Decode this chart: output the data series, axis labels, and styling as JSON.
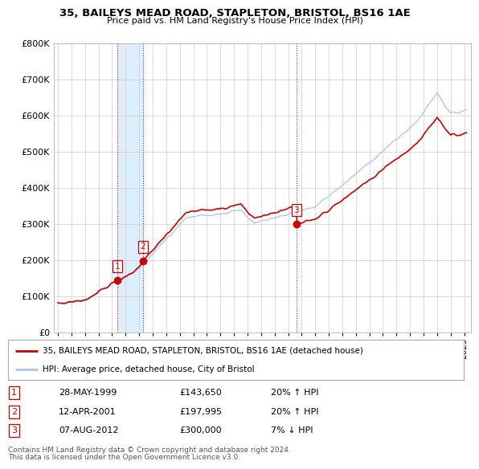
{
  "title": "35, BAILEYS MEAD ROAD, STAPLETON, BRISTOL, BS16 1AE",
  "subtitle": "Price paid vs. HM Land Registry's House Price Index (HPI)",
  "legend_line1": "35, BAILEYS MEAD ROAD, STAPLETON, BRISTOL, BS16 1AE (detached house)",
  "legend_line2": "HPI: Average price, detached house, City of Bristol",
  "footer1": "Contains HM Land Registry data © Crown copyright and database right 2024.",
  "footer2": "This data is licensed under the Open Government Licence v3.0.",
  "transactions": [
    {
      "num": 1,
      "date": "28-MAY-1999",
      "price": 143650,
      "pct": "20%",
      "dir": "↑",
      "year": 1999.38
    },
    {
      "num": 2,
      "date": "12-APR-2001",
      "price": 197995,
      "pct": "20%",
      "dir": "↑",
      "year": 2001.28
    },
    {
      "num": 3,
      "date": "07-AUG-2012",
      "price": 300000,
      "pct": "7%",
      "dir": "↓",
      "year": 2012.6
    }
  ],
  "hpi_color": "#aec9e8",
  "price_color": "#cc0000",
  "marker_color": "#cc0000",
  "vline_color": "#cc0000",
  "shade_color": "#ddeeff",
  "grid_color": "#cccccc",
  "bg_color": "#ffffff",
  "plot_bg_color": "#ffffff",
  "ylim": [
    0,
    800000
  ],
  "yticks": [
    0,
    100000,
    200000,
    300000,
    400000,
    500000,
    600000,
    700000,
    800000
  ],
  "xlim_start": 1994.7,
  "xlim_end": 2025.5,
  "xtick_years": [
    1995,
    1996,
    1997,
    1998,
    1999,
    2000,
    2001,
    2002,
    2003,
    2004,
    2005,
    2006,
    2007,
    2008,
    2009,
    2010,
    2011,
    2012,
    2013,
    2014,
    2015,
    2016,
    2017,
    2018,
    2019,
    2020,
    2021,
    2022,
    2023,
    2024,
    2025
  ]
}
